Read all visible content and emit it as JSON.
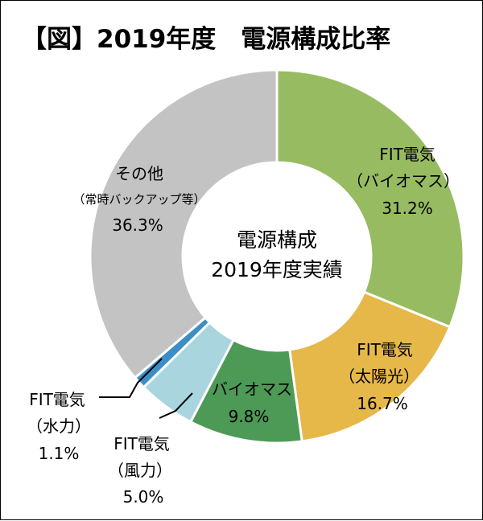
{
  "title": "【図】2019年度　電源構成比率",
  "chart_data": {
    "type": "pie",
    "variant": "donut",
    "center_label": [
      "電源構成",
      "2019年度実績"
    ],
    "slices": [
      {
        "label": [
          "FIT電気",
          "（バイオマス）"
        ],
        "value": 31.2,
        "value_text": "31.2%",
        "color": "#97bb61"
      },
      {
        "label": [
          "FIT電気",
          "（太陽光）"
        ],
        "value": 16.7,
        "value_text": "16.7%",
        "color": "#e6b84a"
      },
      {
        "label": [
          "バイオマス"
        ],
        "value": 9.8,
        "value_text": "9.8%",
        "color": "#4c9a55"
      },
      {
        "label": [
          "FIT電気",
          "（風力）"
        ],
        "value": 5.0,
        "value_text": "5.0%",
        "color": "#a9d5df"
      },
      {
        "label": [
          "FIT電気",
          "（水力）"
        ],
        "value": 1.1,
        "value_text": "1.1%",
        "color": "#3b8fc6"
      },
      {
        "label": [
          "その他",
          "（常時バックアップ等）"
        ],
        "value": 36.3,
        "value_text": "36.3%",
        "color": "#c3c3c3"
      }
    ],
    "start_angle": "12 o'clock",
    "direction": "clockwise",
    "legend": "none"
  }
}
